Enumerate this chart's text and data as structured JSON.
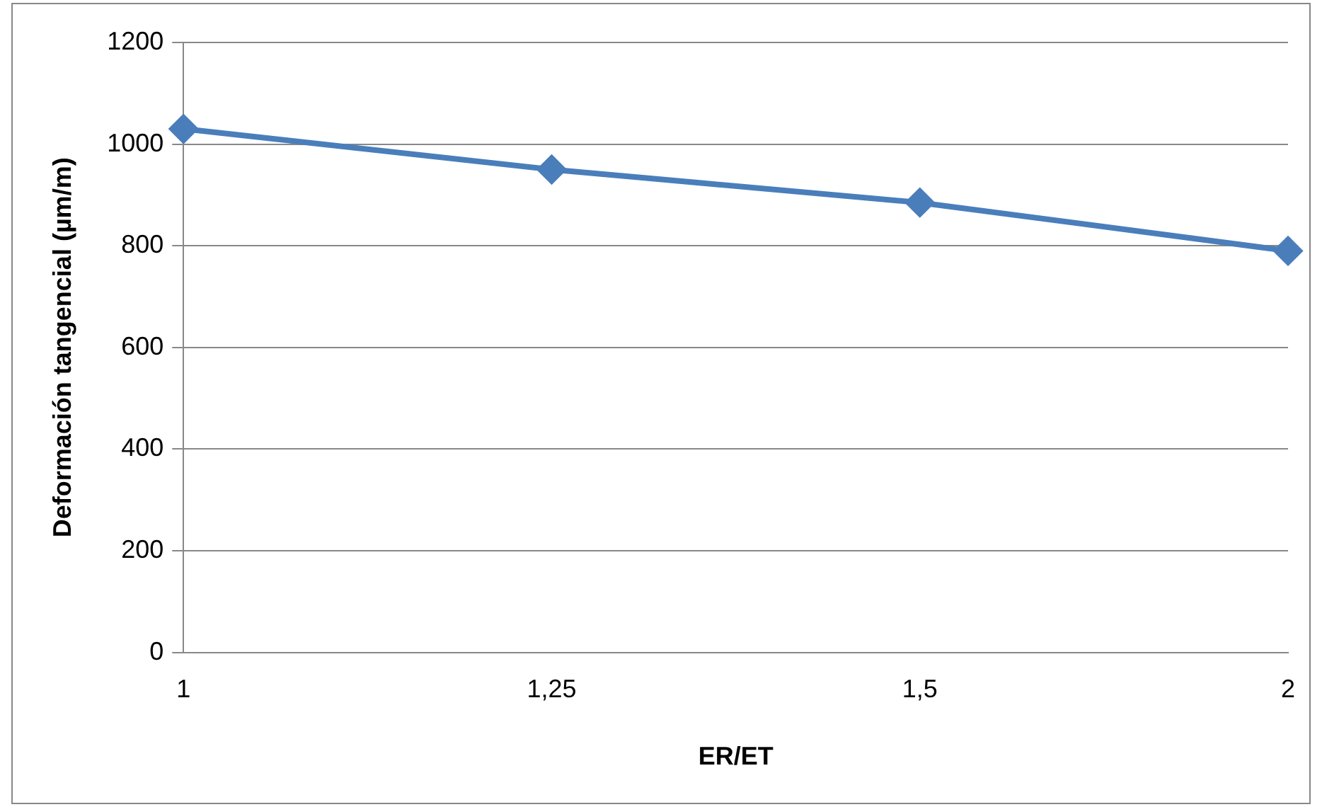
{
  "chart_data": {
    "type": "line",
    "xlabel": "ER/ET",
    "ylabel": "Deformación tangencial (µm/m)",
    "categories": [
      "1",
      "1,25",
      "1,5",
      "2"
    ],
    "series": [
      {
        "color": "#4a7ebb",
        "values": [
          1030,
          950,
          885,
          790
        ]
      }
    ],
    "ylim": [
      0,
      1200
    ],
    "yticks": [
      0,
      200,
      400,
      600,
      800,
      1000,
      1200
    ],
    "grid": "y",
    "legend": false,
    "marker": "diamond",
    "line_style": "solid"
  }
}
